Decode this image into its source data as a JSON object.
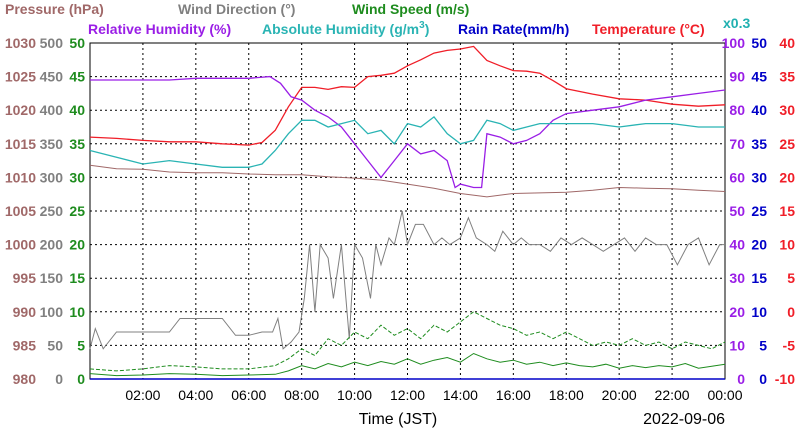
{
  "chart_data": {
    "type": "line",
    "date": "2022-09-06",
    "xlabel": "Time (JST)",
    "x_ticks": [
      "02:00",
      "04:00",
      "06:00",
      "08:00",
      "10:00",
      "12:00",
      "14:00",
      "16:00",
      "18:00",
      "20:00",
      "22:00",
      "00:00"
    ],
    "x_range_hours": [
      0,
      24
    ],
    "grid": true,
    "legend": {
      "pressure": "Pressure (hPa)",
      "wind_direction": "Wind Direction (°)",
      "wind_speed": "Wind Speed (m/s)",
      "relative_humidity": "Relative Humidity (%)",
      "absolute_humidity_a": "Absolute Humidity (g/m",
      "absolute_humidity_sup": "3",
      "absolute_humidity_b": ")",
      "rain_rate": "Rain Rate(mm/h)",
      "temperature": "Temperature (°C)",
      "abs_scale_note": "x0.3"
    },
    "axes": {
      "pressure": {
        "ticks": [
          "1030",
          "1025",
          "1020",
          "1015",
          "1010",
          "1005",
          "1000",
          "995",
          "990",
          "985",
          "980"
        ],
        "range": [
          980,
          1030
        ]
      },
      "wind_direction": {
        "ticks": [
          "500",
          "450",
          "400",
          "350",
          "300",
          "250",
          "200",
          "150",
          "100",
          "50",
          "0"
        ],
        "range": [
          0,
          500
        ]
      },
      "wind_speed": {
        "ticks": [
          "50",
          "45",
          "40",
          "35",
          "30",
          "25",
          "20",
          "15",
          "10",
          "5",
          "0"
        ],
        "range": [
          0,
          50
        ]
      },
      "relative_humidity": {
        "ticks": [
          "100",
          "90",
          "80",
          "70",
          "60",
          "50",
          "40",
          "30",
          "20",
          "10",
          "0"
        ],
        "range": [
          0,
          100
        ]
      },
      "rain_rate": {
        "ticks": [
          "50",
          "45",
          "40",
          "35",
          "30",
          "25",
          "20",
          "15",
          "10",
          "5",
          "0"
        ],
        "range": [
          0,
          50
        ]
      },
      "temperature": {
        "ticks": [
          "40",
          "35",
          "30",
          "25",
          "20",
          "15",
          "10",
          "5",
          "0",
          "-5",
          "-10"
        ],
        "range": [
          -10,
          40
        ]
      }
    },
    "colors": {
      "pressure": "#a06868",
      "wind_direction": "#808080",
      "wind_speed": "#1e8c1e",
      "relative_humidity": "#9a1ee6",
      "absolute_humidity": "#2ab4b4",
      "rain_rate": "#0000c8",
      "temperature": "#f01e28",
      "axis_tick_abs": "#20b0b0"
    },
    "series": [
      {
        "name": "Temperature (°C)",
        "axis": "temperature",
        "x": [
          0,
          1,
          2,
          3,
          4,
          5,
          6,
          6.5,
          7,
          7.5,
          8,
          8.5,
          9,
          9.5,
          10,
          10.5,
          11,
          11.5,
          12,
          12.5,
          13,
          13.5,
          14,
          14.5,
          15,
          15.5,
          16,
          16.5,
          17,
          17.5,
          18,
          19,
          20,
          21,
          22,
          23,
          24
        ],
        "y": [
          26,
          25.8,
          25.5,
          25.3,
          25.3,
          25,
          24.8,
          25.2,
          27,
          30.5,
          33.4,
          33.4,
          33.1,
          33.5,
          33.4,
          35,
          35.2,
          35.5,
          36.6,
          37.5,
          38.5,
          38.9,
          39.1,
          39.5,
          37.4,
          36.6,
          35.9,
          35.8,
          35.5,
          34.4,
          33.2,
          32.4,
          31.7,
          31.5,
          30.9,
          30.6,
          30.8
        ]
      },
      {
        "name": "Relative Humidity (%)",
        "axis": "relative_humidity",
        "x": [
          0,
          1,
          2,
          3,
          4,
          5,
          6,
          6.8,
          7.2,
          7.6,
          8,
          8.5,
          9,
          9.5,
          10,
          10.5,
          11,
          11.5,
          12,
          12.5,
          13,
          13.5,
          13.8,
          14,
          14.5,
          14.8,
          15,
          15.5,
          16,
          16.5,
          17,
          17.5,
          18,
          19,
          20,
          21,
          22,
          23,
          24
        ],
        "y": [
          89,
          89,
          89,
          89,
          89.5,
          89.5,
          89.5,
          90,
          88,
          84,
          83,
          80,
          78,
          75,
          70,
          65,
          60,
          65,
          70,
          67,
          68,
          65,
          57,
          58,
          57,
          57,
          73,
          72,
          70,
          71,
          73,
          77,
          79,
          80,
          81,
          83,
          84,
          85,
          86
        ]
      },
      {
        "name": "Absolute Humidity (g/m3)",
        "axis": "relative_humidity",
        "scale_note": "x0.3",
        "x": [
          0,
          1,
          2,
          3,
          4,
          5,
          6,
          6.5,
          7,
          7.5,
          8,
          8.5,
          9,
          9.5,
          10,
          10.5,
          11,
          11.5,
          12,
          12.5,
          13,
          13.5,
          14,
          14.5,
          15,
          15.5,
          16,
          16.5,
          17,
          18,
          19,
          20,
          21,
          22,
          23,
          24
        ],
        "y": [
          68,
          66,
          64,
          65,
          64,
          63,
          63,
          64,
          68,
          73,
          77,
          77,
          75,
          76,
          77,
          73,
          74,
          70,
          76,
          75,
          78,
          73,
          70,
          71,
          77,
          76,
          74,
          75,
          76,
          76,
          76,
          75,
          76,
          76,
          75,
          75
        ]
      },
      {
        "name": "Pressure (hPa)",
        "axis": "pressure",
        "x": [
          0,
          1,
          2,
          3,
          4,
          5,
          6,
          7,
          8,
          9,
          10,
          11,
          12,
          13,
          14,
          15,
          16,
          17,
          18,
          19,
          20,
          21,
          22,
          23,
          24
        ],
        "y": [
          1011.8,
          1011.3,
          1011.2,
          1010.8,
          1010.7,
          1010.7,
          1010.5,
          1010.4,
          1010.4,
          1010.1,
          1009.9,
          1009.6,
          1009.0,
          1008.4,
          1007.6,
          1007.1,
          1007.6,
          1007.7,
          1007.8,
          1008.1,
          1008.5,
          1008.4,
          1008.3,
          1008.1,
          1007.9
        ]
      },
      {
        "name": "Wind Direction (°)",
        "axis": "wind_direction",
        "x": [
          0,
          0.2,
          0.5,
          1,
          1.5,
          2,
          2.5,
          3,
          3.4,
          4,
          4.4,
          5,
          5.5,
          6,
          6.5,
          6.9,
          7.1,
          7.3,
          7.6,
          7.9,
          8.1,
          8.3,
          8.5,
          8.7,
          9,
          9.2,
          9.5,
          9.8,
          10,
          10.3,
          10.6,
          10.8,
          11,
          11.3,
          11.5,
          11.8,
          12,
          12.3,
          12.6,
          13,
          13.3,
          13.6,
          14,
          14.3,
          14.6,
          15,
          15.3,
          15.6,
          16,
          16.3,
          16.6,
          17,
          17.4,
          17.8,
          18.2,
          18.6,
          19,
          19.4,
          19.8,
          20.2,
          20.6,
          21,
          21.4,
          21.8,
          22.2,
          22.6,
          23,
          23.4,
          23.8,
          24
        ],
        "y": [
          45,
          75,
          45,
          70,
          70,
          70,
          70,
          70,
          90,
          90,
          90,
          90,
          65,
          65,
          70,
          70,
          90,
          45,
          55,
          70,
          120,
          200,
          100,
          200,
          180,
          120,
          200,
          60,
          200,
          180,
          120,
          200,
          170,
          210,
          200,
          250,
          200,
          230,
          230,
          200,
          210,
          200,
          210,
          240,
          210,
          200,
          190,
          220,
          200,
          210,
          200,
          200,
          190,
          210,
          200,
          210,
          200,
          190,
          200,
          210,
          190,
          210,
          200,
          200,
          170,
          200,
          210,
          170,
          200,
          200
        ]
      },
      {
        "name": "Wind Speed (m/s) avg",
        "axis": "wind_speed",
        "x": [
          0,
          1,
          2,
          3,
          4,
          5,
          6,
          7,
          7.5,
          8,
          8.5,
          9,
          9.5,
          10,
          10.5,
          11,
          11.5,
          12,
          12.5,
          13,
          13.5,
          14,
          14.5,
          15,
          15.5,
          16,
          16.5,
          17,
          17.5,
          18,
          18.5,
          19,
          19.5,
          20,
          20.5,
          21,
          21.5,
          22,
          22.5,
          23,
          23.5,
          24
        ],
        "y": [
          0.8,
          0.5,
          0.6,
          0.8,
          0.7,
          0.5,
          0.6,
          0.7,
          1.2,
          2.0,
          1.5,
          2.3,
          1.8,
          2.5,
          2.0,
          2.6,
          2.2,
          3.0,
          2.2,
          2.8,
          3.2,
          2.5,
          3.8,
          3.0,
          2.5,
          2.8,
          2.2,
          2.5,
          2.0,
          2.4,
          2.0,
          1.8,
          2.2,
          1.6,
          2.0,
          1.7,
          2.0,
          1.8,
          2.3,
          1.6,
          1.9,
          2.2
        ]
      },
      {
        "name": "Wind Speed (m/s) gust",
        "axis": "wind_speed",
        "x": [
          0,
          1,
          2,
          3,
          4,
          5,
          6,
          7,
          7.5,
          8,
          8.5,
          9,
          9.5,
          10,
          10.5,
          11,
          11.5,
          12,
          12.5,
          13,
          13.5,
          14,
          14.5,
          15,
          15.5,
          16,
          16.5,
          17,
          17.5,
          18,
          18.5,
          19,
          19.5,
          20,
          20.5,
          21,
          21.5,
          22,
          22.5,
          23,
          23.5,
          24
        ],
        "y": [
          1.5,
          1.2,
          1.5,
          2,
          1.8,
          1.5,
          1.5,
          2,
          3,
          4.5,
          3.5,
          6,
          5,
          7,
          6,
          8,
          6.5,
          7.5,
          6,
          8,
          7,
          8.5,
          10,
          9,
          8,
          7.5,
          6.5,
          7,
          6,
          7,
          6,
          5,
          5.5,
          5,
          6,
          5,
          5.5,
          4.5,
          5.5,
          5,
          4.5,
          5.5
        ]
      },
      {
        "name": "Rain Rate(mm/h)",
        "axis": "rain_rate",
        "x": [
          0,
          24
        ],
        "y": [
          0,
          0
        ]
      }
    ]
  }
}
